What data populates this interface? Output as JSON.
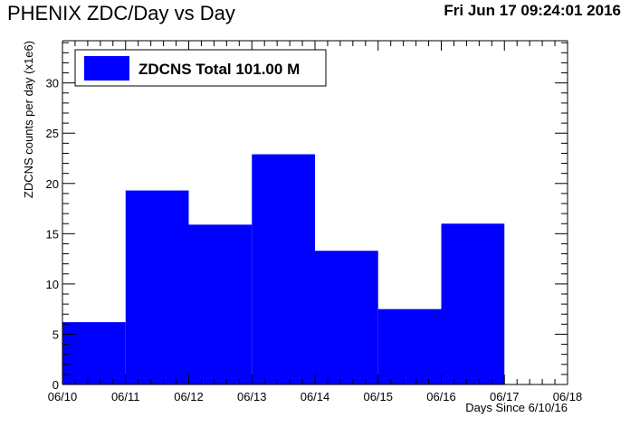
{
  "header": {
    "title": "PHENIX ZDC/Day vs Day",
    "timestamp": "Fri Jun 17 09:24:01 2016"
  },
  "colors": {
    "bar": "#0000ff",
    "axis": "#000000",
    "background": "#ffffff"
  },
  "chart_data": {
    "type": "bar",
    "title": "PHENIX ZDC/Day vs Day",
    "xlabel": "Days Since 6/10/16",
    "ylabel": "ZDCNS counts per day (x1e6)",
    "x_tick_labels": [
      "06/10",
      "06/11",
      "06/12",
      "06/13",
      "06/14",
      "06/15",
      "06/16",
      "06/17",
      "06/18"
    ],
    "y_tick_labels": [
      "0",
      "5",
      "10",
      "15",
      "20",
      "25",
      "30"
    ],
    "ylim": [
      0,
      34.2
    ],
    "xlim": [
      0,
      8
    ],
    "grid": false,
    "legend": {
      "position": "top-left",
      "label": "ZDCNS Total 101.00 M"
    },
    "bins": [
      {
        "from": 0,
        "to": 1,
        "value": 6.2
      },
      {
        "from": 1,
        "to": 2,
        "value": 19.3
      },
      {
        "from": 2,
        "to": 3,
        "value": 15.9
      },
      {
        "from": 3,
        "to": 4,
        "value": 22.9
      },
      {
        "from": 4,
        "to": 5,
        "value": 13.3
      },
      {
        "from": 5,
        "to": 6,
        "value": 7.5
      },
      {
        "from": 6,
        "to": 7,
        "value": 16.0
      },
      {
        "from": 7,
        "to": 8,
        "value": 0
      }
    ]
  }
}
